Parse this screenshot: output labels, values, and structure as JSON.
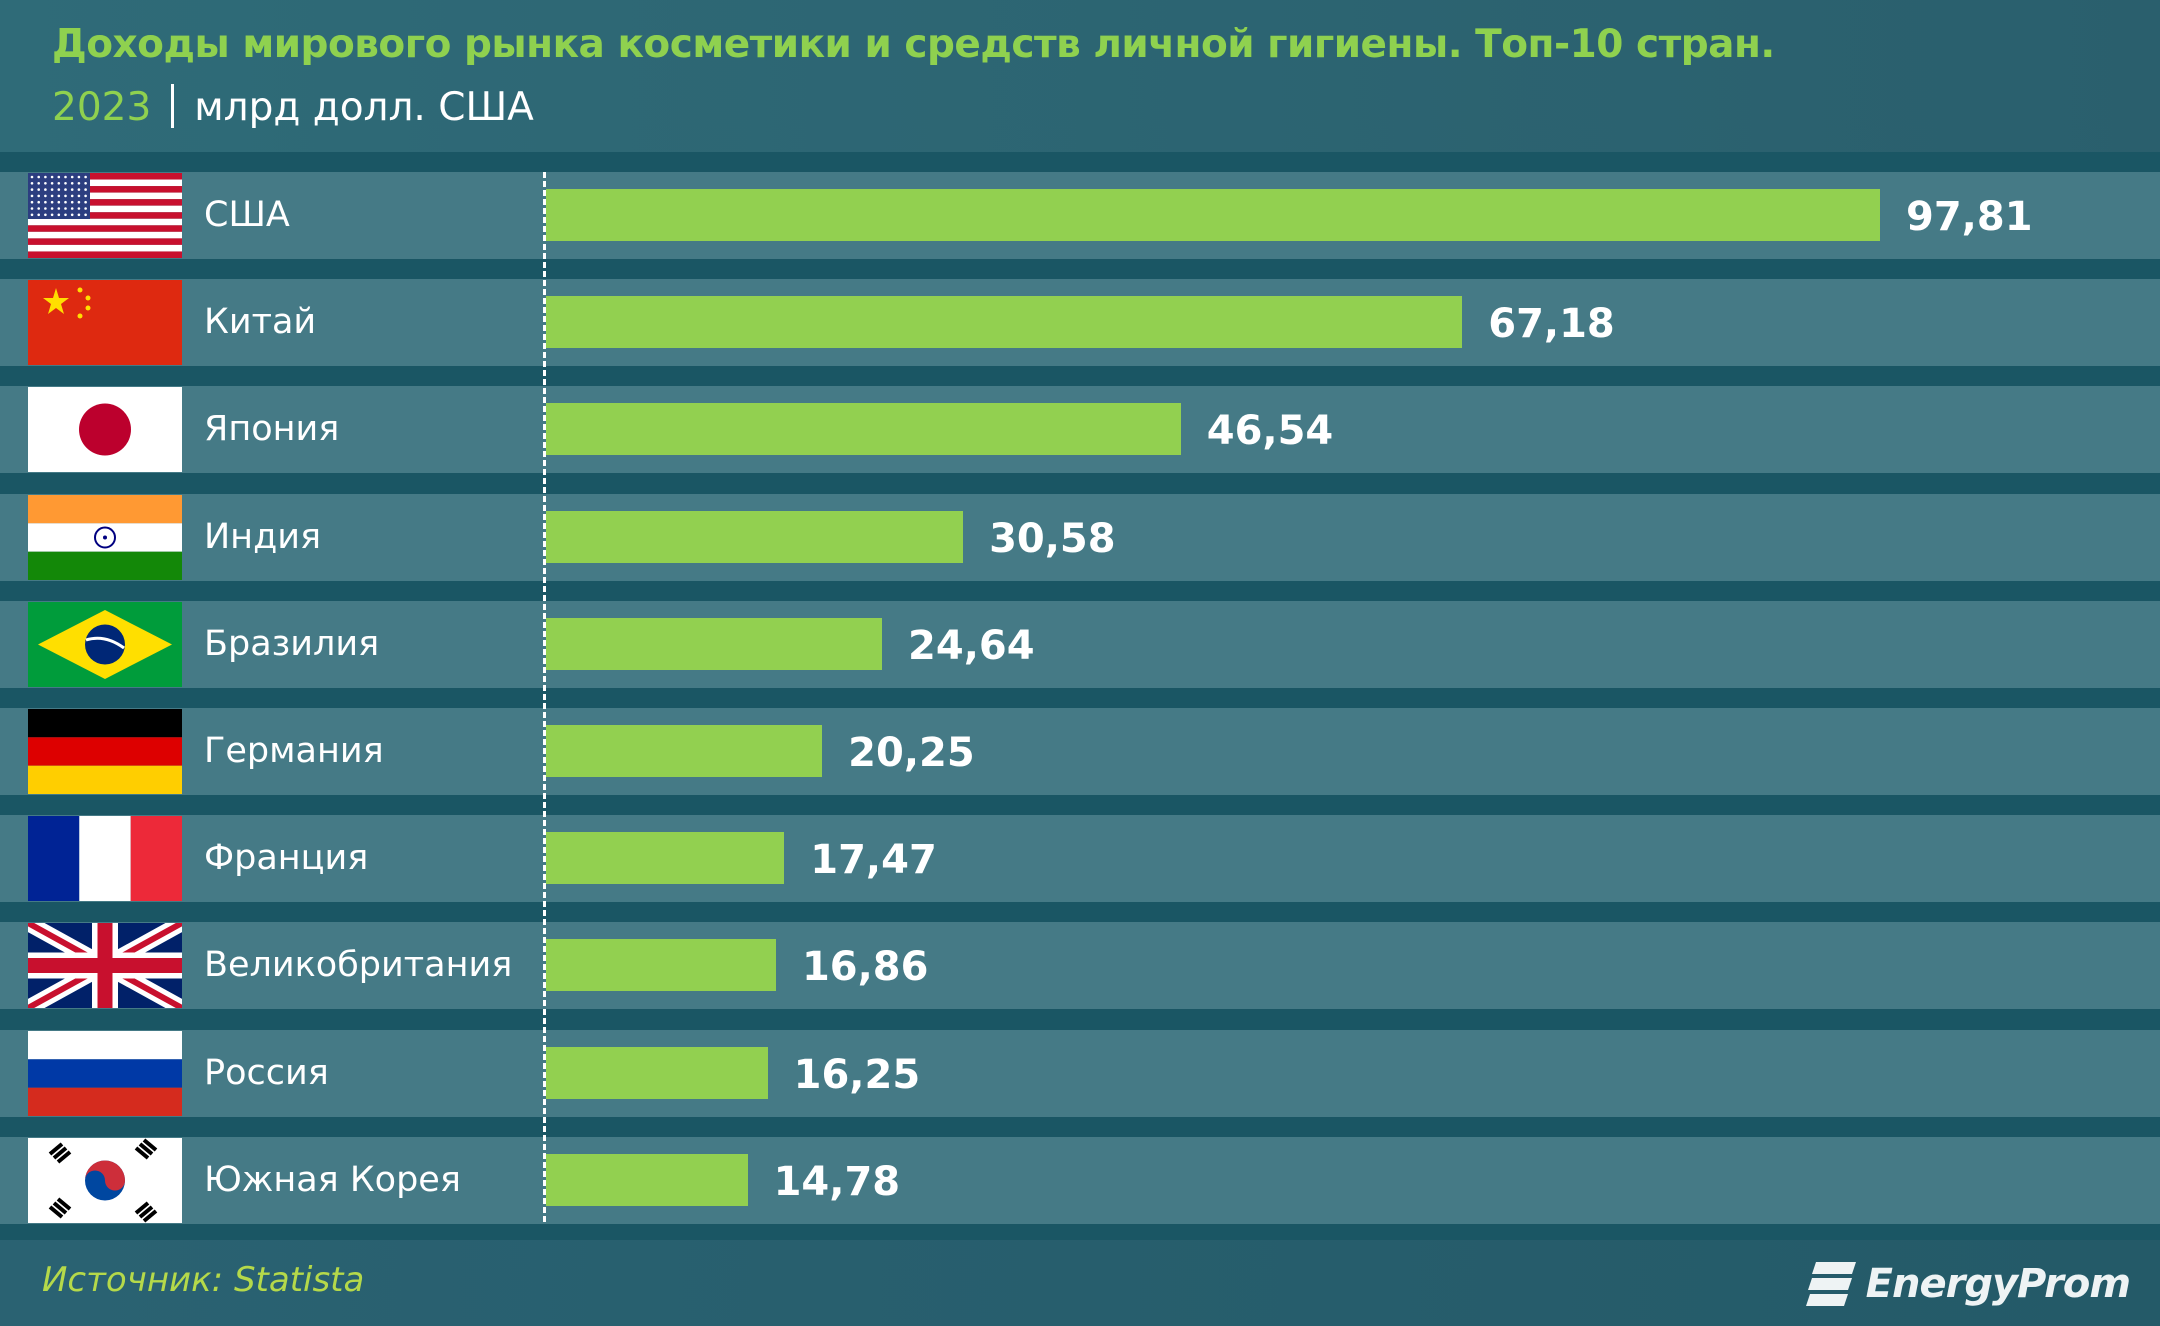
{
  "header": {
    "title": "Доходы мирового рынка косметики и средств личной гигиены. Топ-10 стран.",
    "year": "2023",
    "unit": "млрд долл. США"
  },
  "footer": {
    "source": "Источник: Statista",
    "logo": "EnergyProm"
  },
  "colors": {
    "bar": "#92d050",
    "title": "#8fd14f",
    "row": "#457a86",
    "band": "#1a5664"
  },
  "chart_data": {
    "type": "bar",
    "orientation": "horizontal",
    "title": "Доходы мирового рынка косметики и средств личной гигиены. Топ-10 стран.",
    "subtitle": "2023 | млрд долл. США",
    "categories": [
      "США",
      "Китай",
      "Япония",
      "Индия",
      "Бразилия",
      "Германия",
      "Франция",
      "Великобритания",
      "Россия",
      "Южная Корея"
    ],
    "flags": [
      "us-flag-icon",
      "china-flag-icon",
      "japan-flag-icon",
      "india-flag-icon",
      "brazil-flag-icon",
      "germany-flag-icon",
      "france-flag-icon",
      "uk-flag-icon",
      "russia-flag-icon",
      "south-korea-flag-icon"
    ],
    "values": [
      97.81,
      67.18,
      46.54,
      30.58,
      24.64,
      20.25,
      17.47,
      16.86,
      16.25,
      14.78
    ],
    "value_labels": [
      "97,81",
      "67,18",
      "46,54",
      "30,58",
      "24,64",
      "20,25",
      "17,47",
      "16,86",
      "16,25",
      "14,78"
    ],
    "xlim": [
      0,
      100
    ],
    "grid": false,
    "legend": "none"
  }
}
